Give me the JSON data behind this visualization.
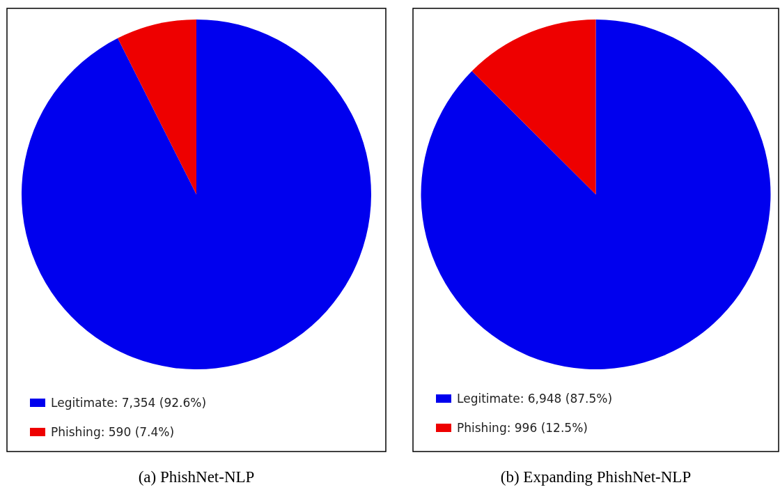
{
  "chart_data": [
    {
      "type": "pie",
      "title": "(a) PhishNet-NLP",
      "categories": [
        "Legitimate",
        "Phishing"
      ],
      "values": [
        7354,
        590
      ],
      "colors": [
        "#0000ee",
        "#ee0000"
      ],
      "value_labels": [
        ": 7,354 (92.6%)",
        ": 590 (7.4%)"
      ],
      "legend": "bottom left"
    },
    {
      "type": "pie",
      "title": "(b) Expanding PhishNet-NLP",
      "categories": [
        "Legitimate",
        "Phishing"
      ],
      "values": [
        6948,
        996
      ],
      "colors": [
        "#0000ee",
        "#ee0000"
      ],
      "value_labels": [
        ": 6,948 (87.5%)",
        ": 996 (12.5%)"
      ],
      "legend": "bottom left"
    }
  ]
}
